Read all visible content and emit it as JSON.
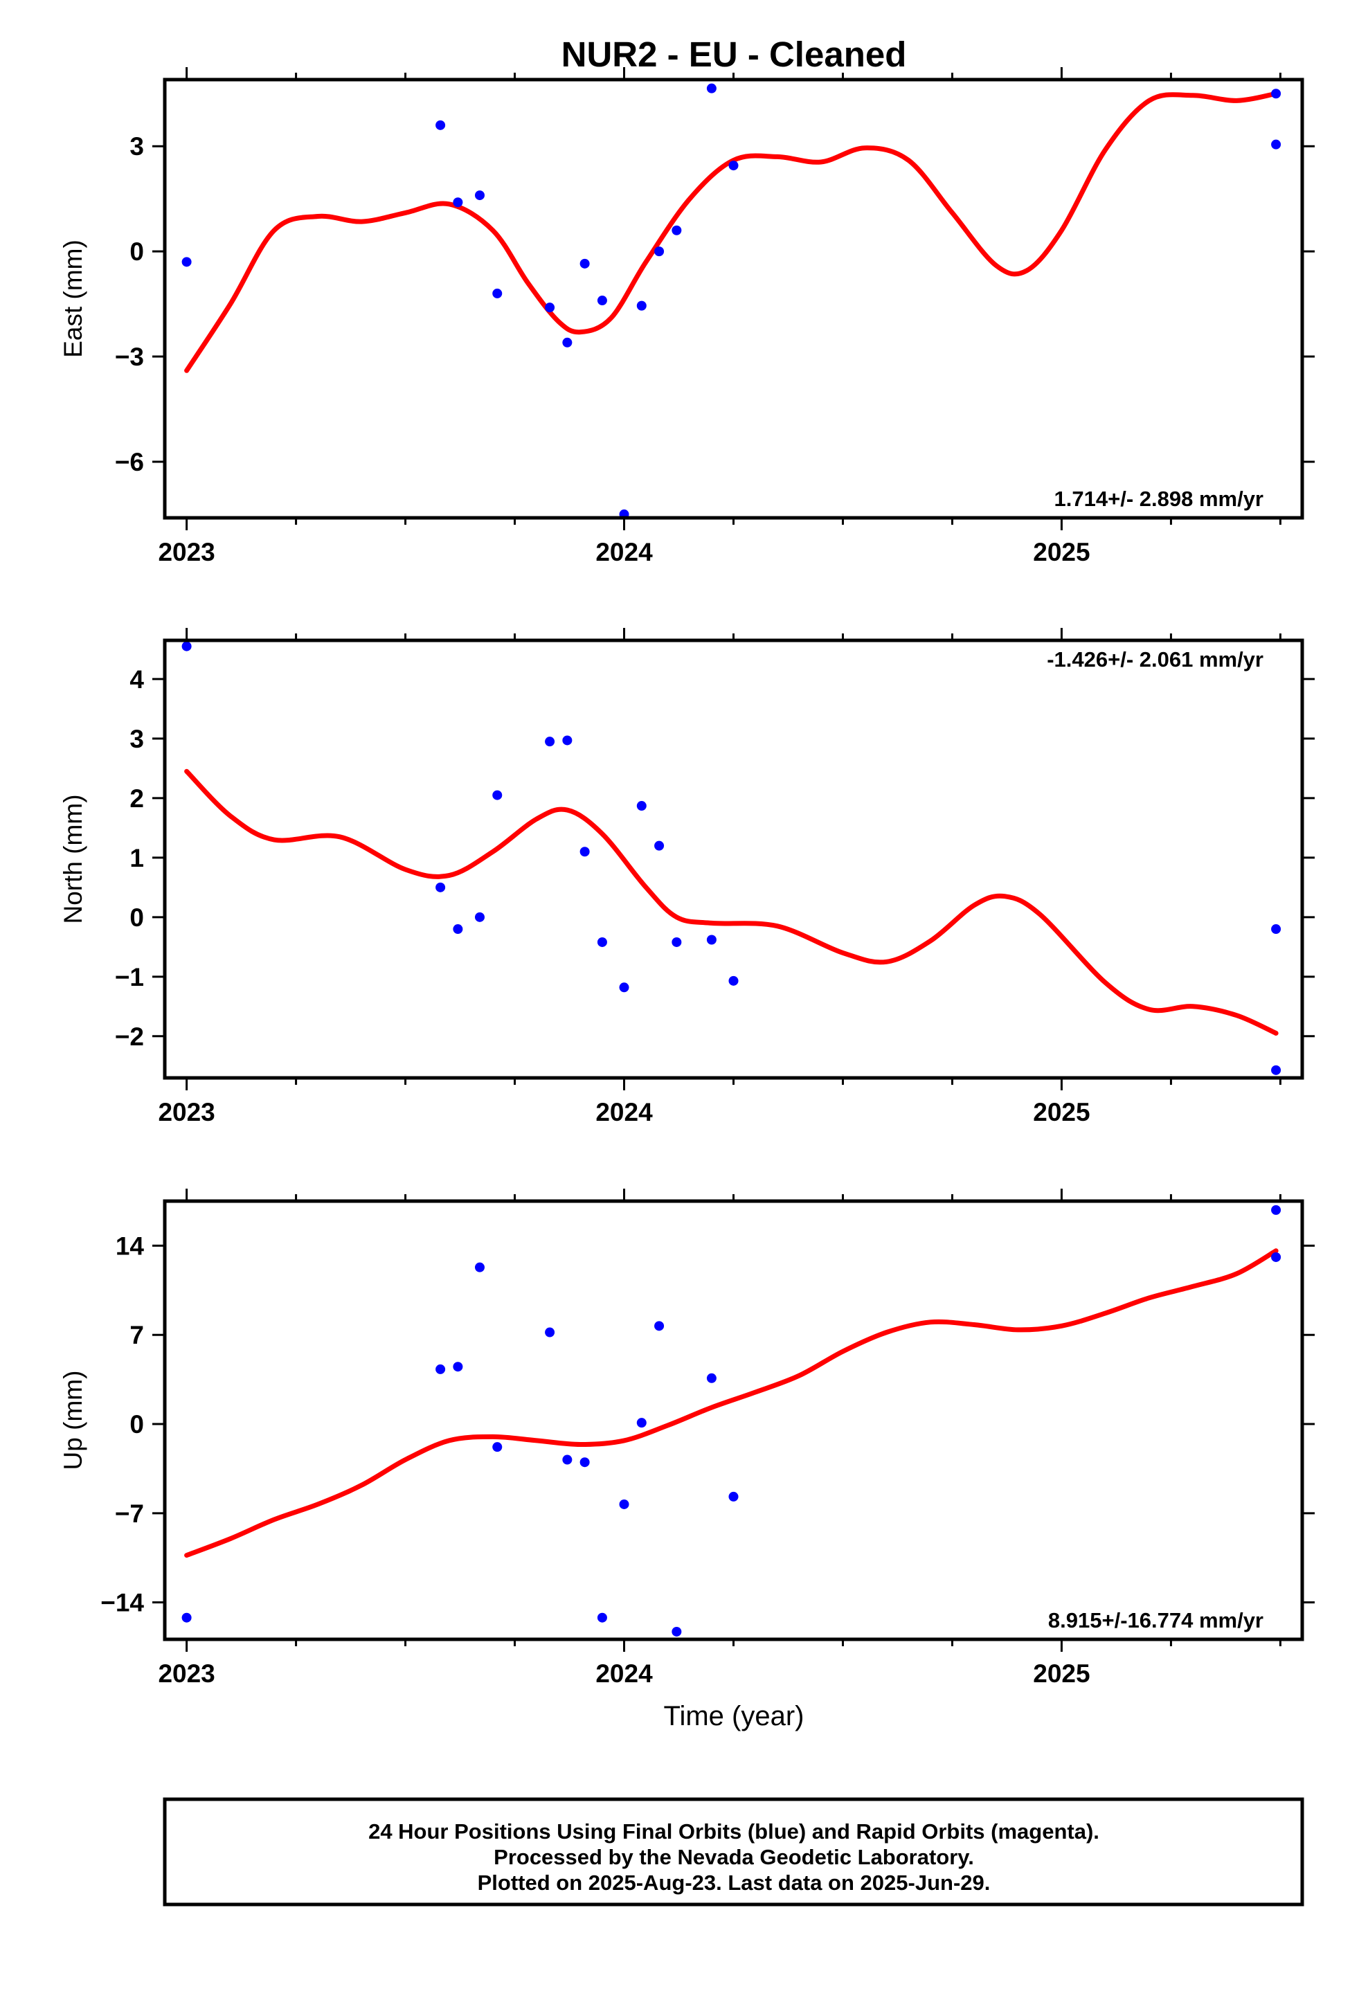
{
  "title": "NUR2  - EU - Cleaned",
  "xlabel": "Time (year)",
  "x_tick_labels": [
    "2023",
    "2024",
    "2025"
  ],
  "footer": {
    "line1": "24 Hour Positions Using Final Orbits (blue) and Rapid Orbits (magenta).",
    "line2": "Processed by the Nevada Geodetic Laboratory.",
    "line3": "Plotted on 2025-Aug-23. Last data on 2025-Jun-29."
  },
  "colors": {
    "points": "#0000ff",
    "fit": "#ff0000",
    "frame": "#000000"
  },
  "chart_data": [
    {
      "type": "scatter",
      "ylabel": "East (mm)",
      "rate_label": "1.714+/- 2.898 mm/yr",
      "xlim": [
        2022.95,
        2025.55
      ],
      "ylim": [
        -7.6,
        4.9
      ],
      "yticks": [
        3,
        0,
        -3,
        -6
      ],
      "ytick_labels": [
        "3",
        "0",
        "−3",
        "−6"
      ],
      "grid": false,
      "series": [
        {
          "kind": "points",
          "x": [
            2023.0,
            2023.58,
            2023.62,
            2023.67,
            2023.71,
            2023.83,
            2023.87,
            2023.91,
            2023.95,
            2024.0,
            2024.04,
            2024.08,
            2024.12,
            2024.2,
            2024.25,
            2025.49,
            2025.49
          ],
          "y": [
            -0.3,
            3.6,
            1.4,
            1.6,
            -1.2,
            -1.6,
            -2.6,
            -0.35,
            -1.4,
            -7.5,
            -1.55,
            0.0,
            0.6,
            4.65,
            2.45,
            4.5,
            3.05
          ]
        },
        {
          "kind": "fit",
          "x": [
            2023.0,
            2023.1,
            2023.2,
            2023.3,
            2023.4,
            2023.5,
            2023.6,
            2023.7,
            2023.78,
            2023.85,
            2023.9,
            2023.97,
            2024.05,
            2024.15,
            2024.25,
            2024.35,
            2024.45,
            2024.55,
            2024.65,
            2024.75,
            2024.85,
            2024.92,
            2025.0,
            2025.1,
            2025.2,
            2025.3,
            2025.4,
            2025.49
          ],
          "y": [
            -3.4,
            -1.5,
            0.6,
            1.0,
            0.85,
            1.1,
            1.35,
            0.6,
            -0.9,
            -2.0,
            -2.3,
            -1.9,
            -0.3,
            1.5,
            2.6,
            2.7,
            2.55,
            2.95,
            2.6,
            1.1,
            -0.4,
            -0.55,
            0.6,
            2.9,
            4.3,
            4.45,
            4.3,
            4.5
          ]
        }
      ]
    },
    {
      "type": "scatter",
      "ylabel": "North (mm)",
      "rate_label": "-1.426+/- 2.061 mm/yr",
      "xlim": [
        2022.95,
        2025.55
      ],
      "ylim": [
        -2.7,
        4.65
      ],
      "yticks": [
        4,
        3,
        2,
        1,
        0,
        -1,
        -2
      ],
      "ytick_labels": [
        "4",
        "3",
        "2",
        "1",
        "0",
        "−1",
        "−2"
      ],
      "grid": false,
      "series": [
        {
          "kind": "points",
          "x": [
            2023.0,
            2023.58,
            2023.62,
            2023.67,
            2023.71,
            2023.83,
            2023.87,
            2023.91,
            2023.95,
            2024.0,
            2024.04,
            2024.08,
            2024.12,
            2024.2,
            2024.25,
            2025.49,
            2025.49
          ],
          "y": [
            4.55,
            0.5,
            -0.2,
            0.0,
            2.05,
            2.95,
            2.97,
            1.1,
            -0.42,
            -1.18,
            1.87,
            1.2,
            -0.42,
            -0.38,
            -1.07,
            -0.2,
            -2.57
          ]
        },
        {
          "kind": "fit",
          "x": [
            2023.0,
            2023.1,
            2023.2,
            2023.35,
            2023.5,
            2023.6,
            2023.7,
            2023.8,
            2023.87,
            2023.95,
            2024.05,
            2024.12,
            2024.2,
            2024.35,
            2024.5,
            2024.6,
            2024.7,
            2024.8,
            2024.87,
            2024.95,
            2025.1,
            2025.2,
            2025.3,
            2025.4,
            2025.49
          ],
          "y": [
            2.45,
            1.7,
            1.3,
            1.35,
            0.8,
            0.7,
            1.1,
            1.65,
            1.8,
            1.4,
            0.5,
            0.0,
            -0.1,
            -0.15,
            -0.6,
            -0.75,
            -0.4,
            0.2,
            0.35,
            0.05,
            -1.1,
            -1.55,
            -1.5,
            -1.65,
            -1.95
          ]
        }
      ]
    },
    {
      "type": "scatter",
      "ylabel": "Up (mm)",
      "rate_label": "8.915+/-16.774 mm/yr",
      "xlim": [
        2022.95,
        2025.55
      ],
      "ylim": [
        -16.9,
        17.5
      ],
      "yticks": [
        14,
        7,
        0,
        -7,
        -14
      ],
      "ytick_labels": [
        "14",
        "7",
        "0",
        "−7",
        "−14"
      ],
      "grid": false,
      "series": [
        {
          "kind": "points",
          "x": [
            2023.0,
            2023.58,
            2023.62,
            2023.67,
            2023.71,
            2023.83,
            2023.87,
            2023.91,
            2023.95,
            2024.0,
            2024.04,
            2024.08,
            2024.12,
            2024.2,
            2024.25,
            2025.49,
            2025.49
          ],
          "y": [
            -15.2,
            4.3,
            4.5,
            12.3,
            -1.8,
            7.2,
            -2.8,
            -3.0,
            -15.2,
            -6.3,
            0.1,
            7.7,
            -16.3,
            3.6,
            -5.7,
            16.8,
            13.1
          ]
        },
        {
          "kind": "fit",
          "x": [
            2023.0,
            2023.1,
            2023.2,
            2023.3,
            2023.4,
            2023.5,
            2023.6,
            2023.7,
            2023.8,
            2023.9,
            2024.0,
            2024.1,
            2024.2,
            2024.3,
            2024.4,
            2024.5,
            2024.6,
            2024.7,
            2024.8,
            2024.9,
            2025.0,
            2025.1,
            2025.2,
            2025.3,
            2025.4,
            2025.49
          ],
          "y": [
            -10.3,
            -9.0,
            -7.5,
            -6.3,
            -4.8,
            -2.8,
            -1.3,
            -1.0,
            -1.3,
            -1.6,
            -1.3,
            -0.1,
            1.3,
            2.5,
            3.8,
            5.7,
            7.2,
            8.0,
            7.8,
            7.4,
            7.7,
            8.7,
            9.9,
            10.8,
            11.8,
            13.6
          ]
        }
      ]
    }
  ]
}
